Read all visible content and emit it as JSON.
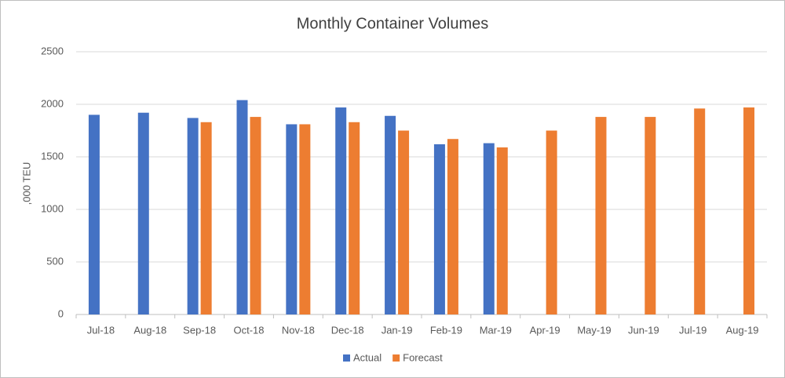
{
  "chart_data": {
    "type": "bar",
    "title": "Monthly Container Volumes",
    "y_label": ",000 TEU",
    "categories": [
      "Jul-18",
      "Aug-18",
      "Sep-18",
      "Oct-18",
      "Nov-18",
      "Dec-18",
      "Jan-19",
      "Feb-19",
      "Mar-19",
      "Apr-19",
      "May-19",
      "Jun-19",
      "Jul-19",
      "Aug-19"
    ],
    "series": [
      {
        "name": "Actual",
        "color": "#4472c4",
        "values": [
          1900,
          1920,
          1870,
          2040,
          1810,
          1970,
          1890,
          1620,
          1630,
          null,
          null,
          null,
          null,
          null
        ]
      },
      {
        "name": "Forecast",
        "color": "#ed7d31",
        "values": [
          null,
          null,
          1830,
          1880,
          1810,
          1830,
          1750,
          1670,
          1590,
          1750,
          1880,
          1880,
          1960,
          1970
        ]
      }
    ],
    "ylim": [
      0,
      2500
    ],
    "yticks": [
      0,
      500,
      1000,
      1500,
      2000,
      2500
    ],
    "grid": true,
    "legend": "bottom"
  }
}
